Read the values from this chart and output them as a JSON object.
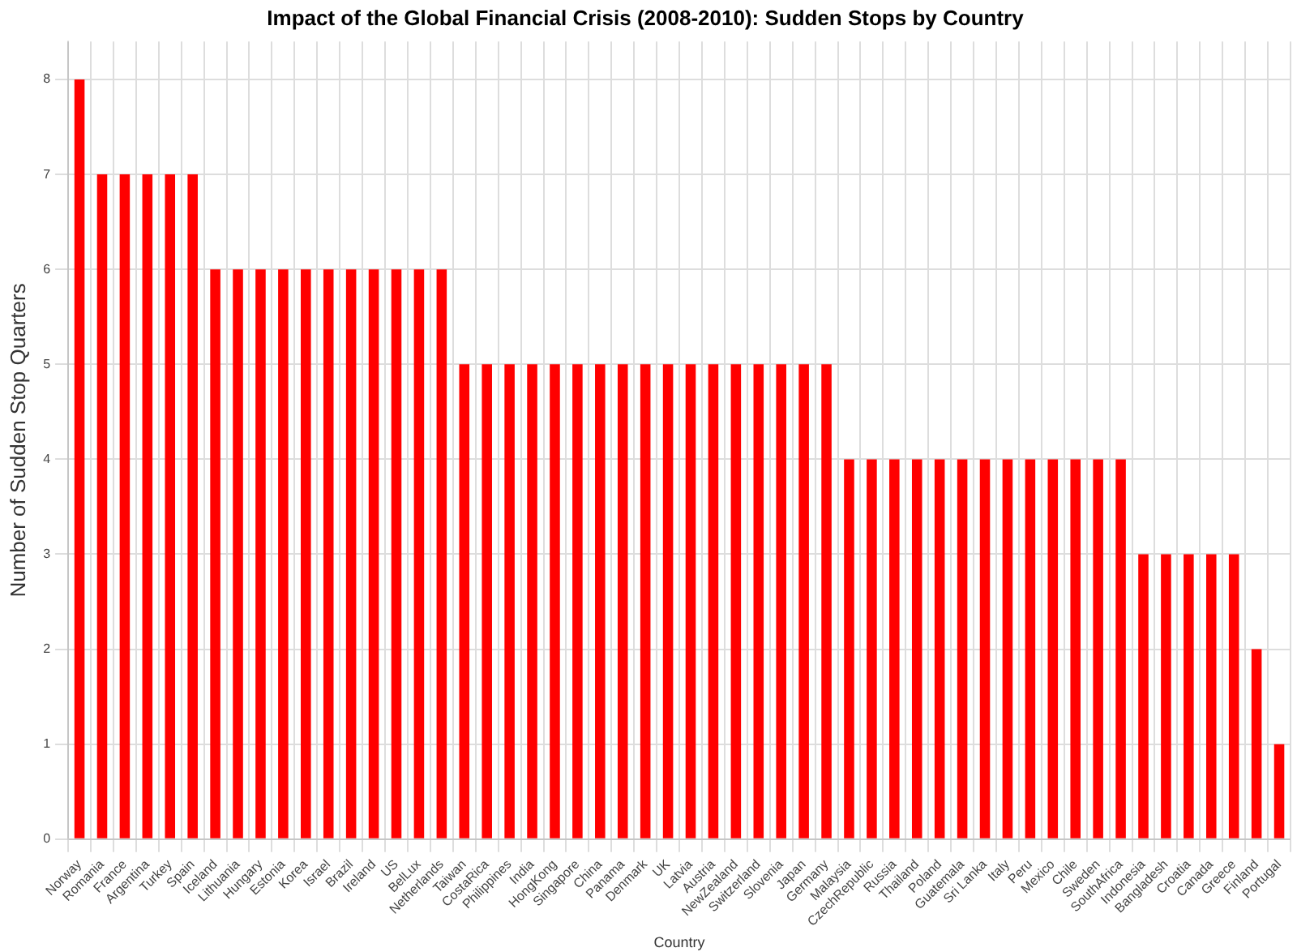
{
  "chart_data": {
    "type": "bar",
    "title": "Impact of the Global Financial Crisis (2008-2010): Sudden Stops by Country",
    "xlabel": "Country",
    "ylabel": "Number of Sudden Stop Quarters",
    "categories": [
      "Norway",
      "Romania",
      "France",
      "Argentina",
      "Turkey",
      "Spain",
      "Iceland",
      "Lithuania",
      "Hungary",
      "Estonia",
      "Korea",
      "Israel",
      "Brazil",
      "Ireland",
      "US",
      "BelLux",
      "Netherlands",
      "Taiwan",
      "CostaRica",
      "Philippines",
      "India",
      "HongKong",
      "Singapore",
      "China",
      "Panama",
      "Denmark",
      "UK",
      "Latvia",
      "Austria",
      "NewZealand",
      "Switzerland",
      "Slovenia",
      "Japan",
      "Germany",
      "Malaysia",
      "CzechRepublic",
      "Russia",
      "Thailand",
      "Poland",
      "Guatemala",
      "Sri Lanka",
      "Italy",
      "Peru",
      "Mexico",
      "Chile",
      "Sweden",
      "SouthAfrica",
      "Indonesia",
      "Bangladesh",
      "Croatia",
      "Canada",
      "Greece",
      "Finland",
      "Portugal"
    ],
    "values": [
      8,
      7,
      7,
      7,
      7,
      7,
      6,
      6,
      6,
      6,
      6,
      6,
      6,
      6,
      6,
      6,
      6,
      5,
      5,
      5,
      5,
      5,
      5,
      5,
      5,
      5,
      5,
      5,
      5,
      5,
      5,
      5,
      5,
      5,
      4,
      4,
      4,
      4,
      4,
      4,
      4,
      4,
      4,
      4,
      4,
      4,
      4,
      3,
      3,
      3,
      3,
      3,
      2,
      1
    ],
    "color": "#ff0000",
    "ylim": [
      0,
      8.4
    ],
    "yticks": [
      0,
      1,
      2,
      3,
      4,
      5,
      6,
      7,
      8
    ],
    "grid": true
  }
}
